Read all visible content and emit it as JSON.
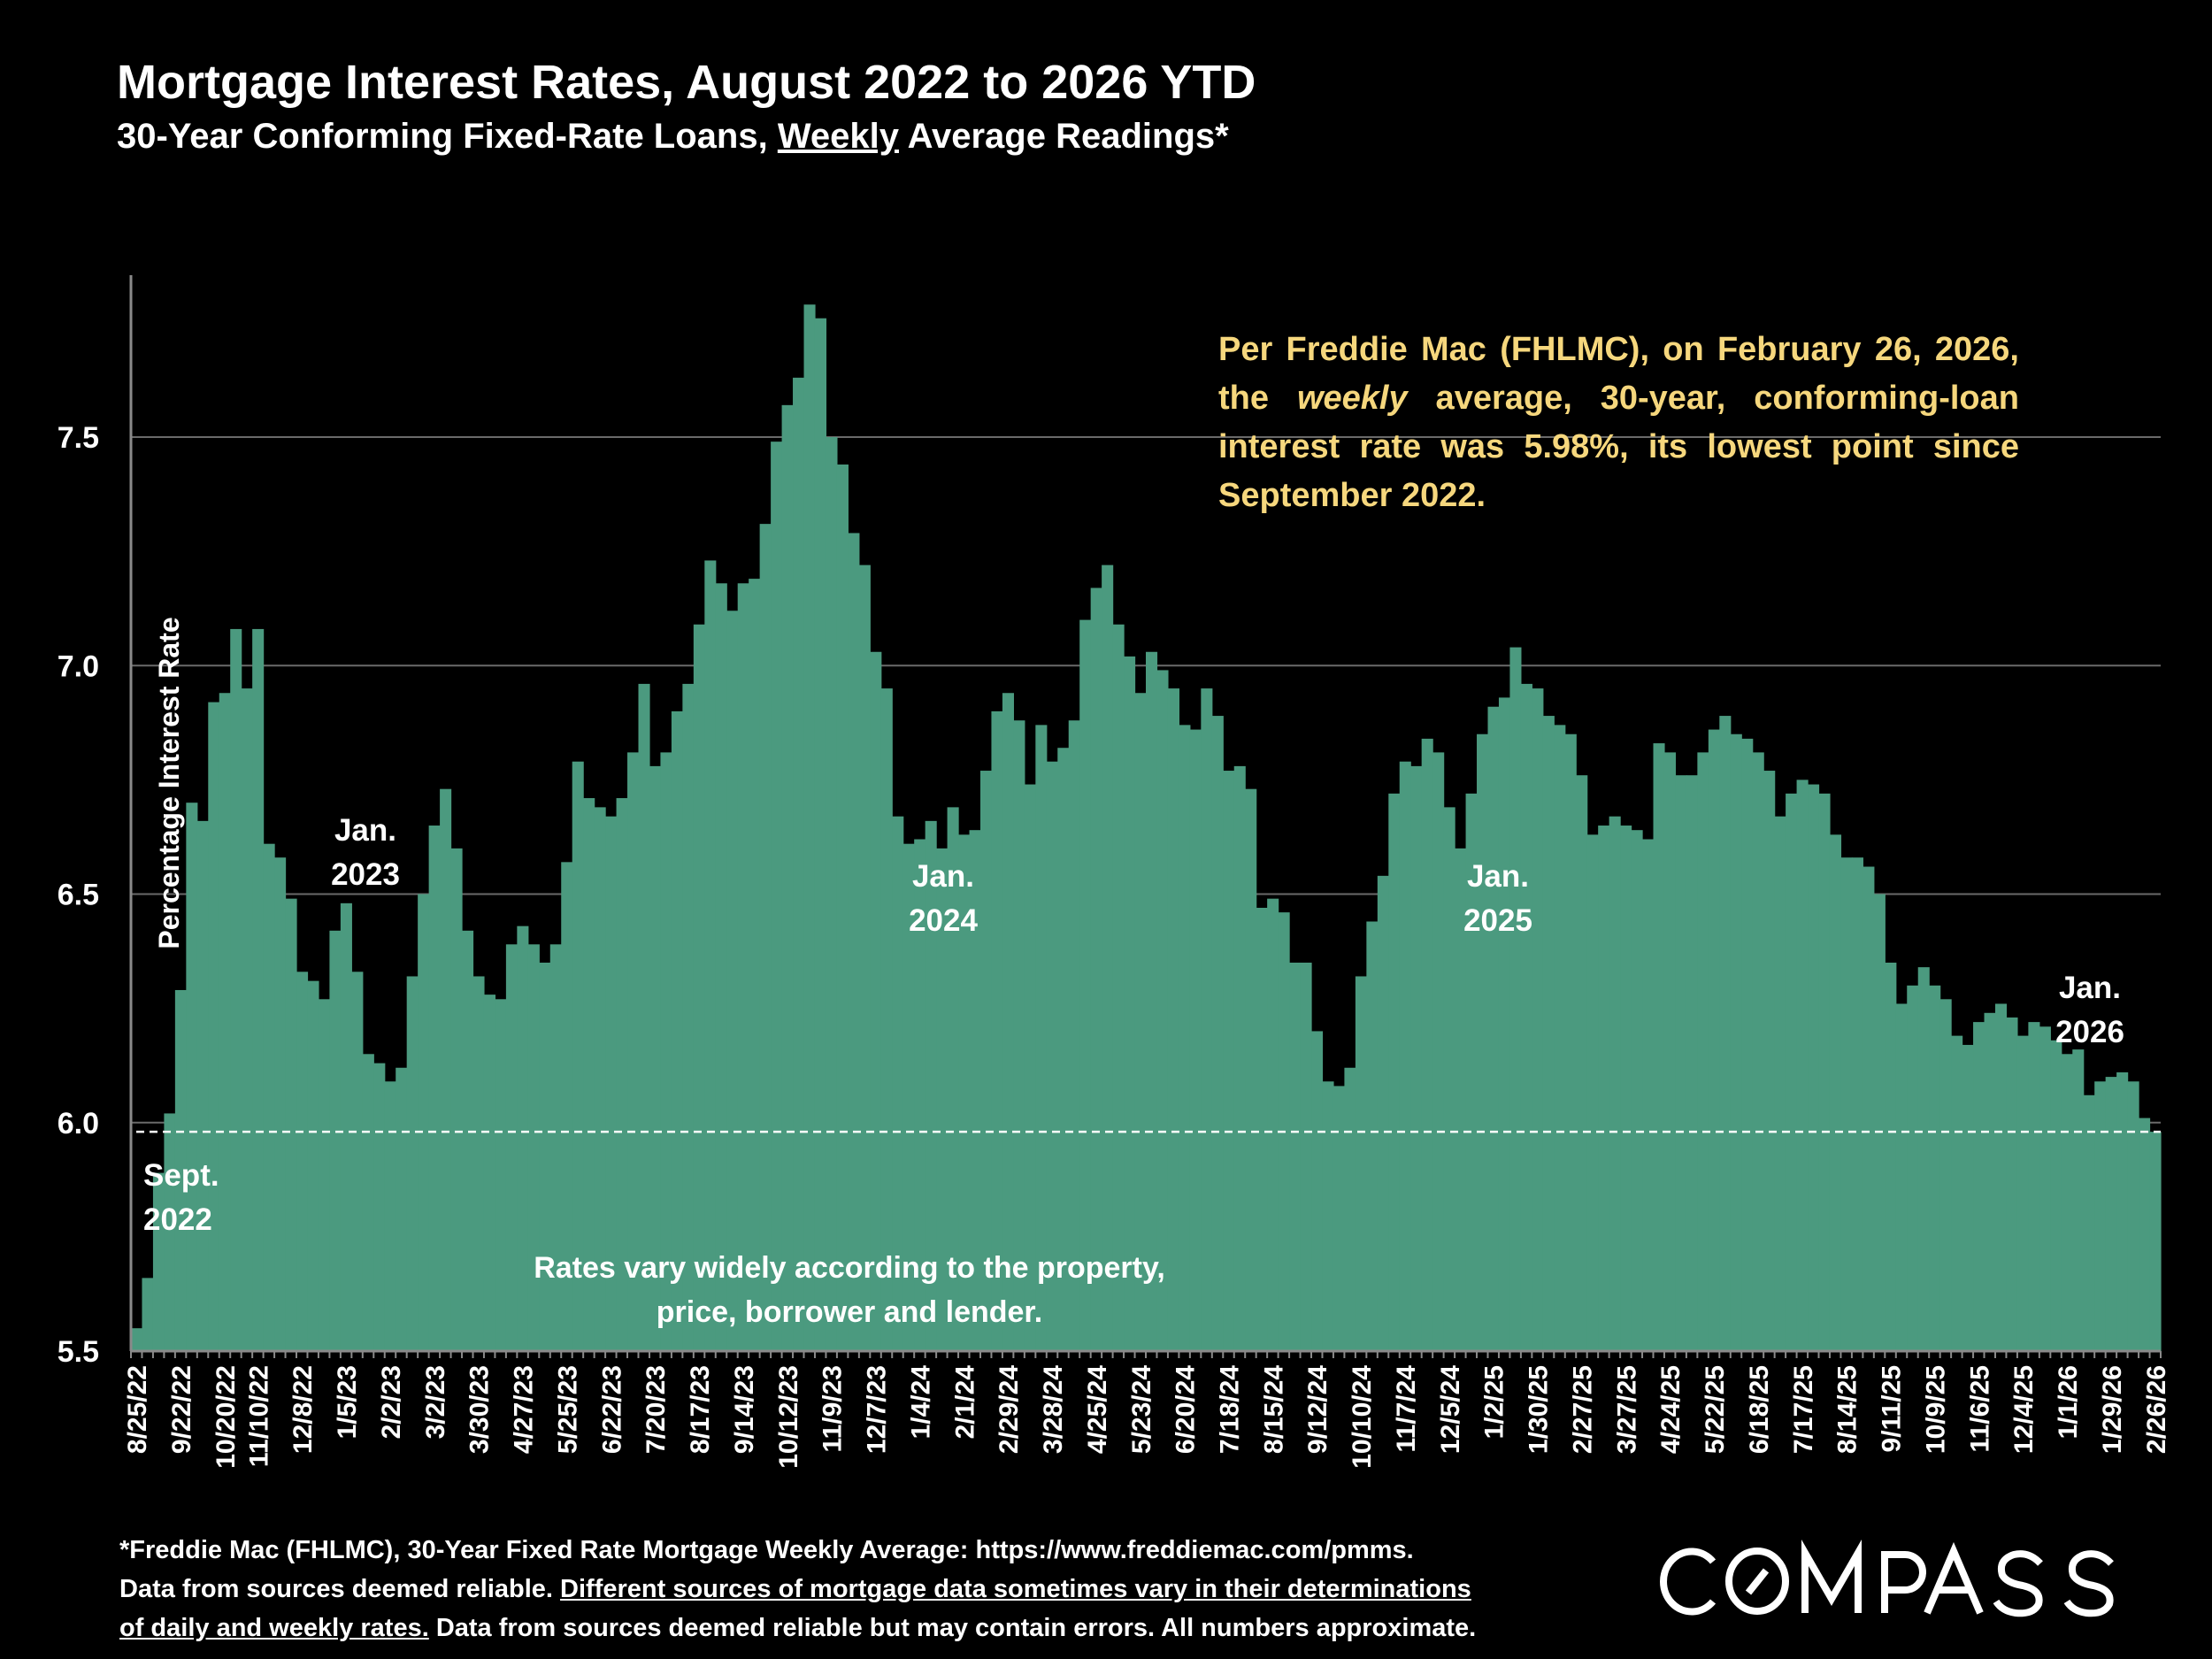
{
  "title": "Mortgage Interest Rates, August 2022 to 2026 YTD",
  "subtitle": {
    "before": "30-Year Conforming Fixed-Rate Loans, ",
    "underlined": "Weekly",
    "after": " Average Readings*"
  },
  "annotation": {
    "part1": "Per Freddie Mac (FHLMC), on February 26, 2026, the ",
    "italic": "weekly",
    "part2": " average, 30-year, conforming-loan interest rate was 5.98%, its lowest point since September 2022."
  },
  "footer": {
    "line1": "*Freddie Mac (FHLMC), 30-Year Fixed Rate Mortgage Weekly Average:  https://www.freddiemac.com/pmms.",
    "line2_plain": "Data from sources deemed reliable. ",
    "line2_underlined": "Different sources of mortgage data sometimes vary in their determinations",
    "line3_underlined": "of daily and weekly rates.",
    "line3_plain": " Data from sources deemed reliable but may contain errors. All numbers approximate."
  },
  "logo": "COMPASS",
  "colors": {
    "bar": "#4b9a7f",
    "annotation": "#f6d77d",
    "background": "#000000",
    "reference_line": "#ffffff"
  },
  "chart_data": {
    "type": "bar",
    "ylabel": "Percentage Interest  Rate",
    "ylim": [
      5.5,
      7.85
    ],
    "yticks": [
      "5.5",
      "6.0",
      "6.5",
      "7.0",
      "7.5"
    ],
    "grid": true,
    "reference_line": 5.98,
    "annotations": [
      {
        "text": [
          "Sept.",
          "2022"
        ],
        "at": "9/15/22"
      },
      {
        "text": [
          "Jan.",
          "2023"
        ],
        "at": "1/5/23"
      },
      {
        "text": [
          "Jan.",
          "2024"
        ],
        "at": "1/4/24"
      },
      {
        "text": [
          "Jan.",
          "2025"
        ],
        "at": "1/2/25"
      },
      {
        "text": [
          "Jan.",
          "2026"
        ],
        "at": "1/1/26"
      },
      {
        "text": [
          "Rates vary widely according to the property,",
          "price, borrower and lender."
        ],
        "at": "center"
      }
    ],
    "xtick_labels": [
      "8/25/22",
      "9/22/22",
      "10/20/22",
      "11/10/22",
      "12/8/22",
      "1/5/23",
      "2/2/23",
      "3/2/23",
      "3/30/23",
      "4/27/23",
      "5/25/23",
      "6/22/23",
      "7/20/23",
      "8/17/23",
      "9/14/23",
      "10/12/23",
      "11/9/23",
      "12/7/23",
      "1/4/24",
      "2/1/24",
      "2/29/24",
      "3/28/24",
      "4/25/24",
      "5/23/24",
      "6/20/24",
      "7/18/24",
      "8/15/24",
      "9/12/24",
      "10/10/24",
      "11/7/24",
      "12/5/24",
      "1/2/25",
      "1/30/25",
      "2/27/25",
      "3/27/25",
      "4/24/25",
      "5/22/25",
      "6/18/25",
      "7/17/25",
      "8/14/25",
      "9/11/25",
      "10/9/25",
      "11/6/25",
      "12/4/25",
      "1/1/26",
      "1/29/26",
      "2/26/26"
    ],
    "x": [
      "8/25/22",
      "9/1/22",
      "9/8/22",
      "9/15/22",
      "9/22/22",
      "9/29/22",
      "10/6/22",
      "10/13/22",
      "10/20/22",
      "10/27/22",
      "11/3/22",
      "11/10/22",
      "11/17/22",
      "11/23/22",
      "12/1/22",
      "12/8/22",
      "12/15/22",
      "12/22/22",
      "12/29/22",
      "1/5/23",
      "1/12/23",
      "1/19/23",
      "1/26/23",
      "2/2/23",
      "2/9/23",
      "2/16/23",
      "2/23/23",
      "3/2/23",
      "3/9/23",
      "3/16/23",
      "3/23/23",
      "3/30/23",
      "4/6/23",
      "4/13/23",
      "4/20/23",
      "4/27/23",
      "5/4/23",
      "5/11/23",
      "5/18/23",
      "5/25/23",
      "6/1/23",
      "6/8/23",
      "6/15/23",
      "6/22/23",
      "6/29/23",
      "7/6/23",
      "7/13/23",
      "7/20/23",
      "7/27/23",
      "8/3/23",
      "8/10/23",
      "8/17/23",
      "8/24/23",
      "8/31/23",
      "9/7/23",
      "9/14/23",
      "9/21/23",
      "9/28/23",
      "10/5/23",
      "10/12/23",
      "10/19/23",
      "10/26/23",
      "11/2/23",
      "11/9/23",
      "11/16/23",
      "11/22/23",
      "11/30/23",
      "12/7/23",
      "12/14/23",
      "12/21/23",
      "12/28/23",
      "1/4/24",
      "1/11/24",
      "1/18/24",
      "1/25/24",
      "2/1/24",
      "2/8/24",
      "2/15/24",
      "2/22/24",
      "2/29/24",
      "3/7/24",
      "3/14/24",
      "3/21/24",
      "3/28/24",
      "4/4/24",
      "4/11/24",
      "4/18/24",
      "4/25/24",
      "5/2/24",
      "5/9/24",
      "5/16/24",
      "5/23/24",
      "5/30/24",
      "6/6/24",
      "6/13/24",
      "6/20/24",
      "6/27/24",
      "7/3/24",
      "7/11/24",
      "7/18/24",
      "7/25/24",
      "8/1/24",
      "8/8/24",
      "8/15/24",
      "8/22/24",
      "8/29/24",
      "9/5/24",
      "9/12/24",
      "9/19/24",
      "9/26/24",
      "10/3/24",
      "10/10/24",
      "10/17/24",
      "10/24/24",
      "10/31/24",
      "11/7/24",
      "11/14/24",
      "11/21/24",
      "11/27/24",
      "12/5/24",
      "12/12/24",
      "12/19/24",
      "12/26/24",
      "1/2/25",
      "1/9/25",
      "1/16/25",
      "1/23/25",
      "1/30/25",
      "2/6/25",
      "2/13/25",
      "2/20/25",
      "2/27/25",
      "3/6/25",
      "3/13/25",
      "3/20/25",
      "3/27/25",
      "4/3/25",
      "4/10/25",
      "4/17/25",
      "4/24/25",
      "5/1/25",
      "5/8/25",
      "5/15/25",
      "5/22/25",
      "5/29/25",
      "6/5/25",
      "6/12/25",
      "6/18/25",
      "6/26/25",
      "7/3/25",
      "7/10/25",
      "7/17/25",
      "7/24/25",
      "7/31/25",
      "8/7/25",
      "8/14/25",
      "8/21/25",
      "8/28/25",
      "9/4/25",
      "9/11/25",
      "9/18/25",
      "9/25/25",
      "10/2/25",
      "10/9/25",
      "10/16/25",
      "10/23/25",
      "10/30/25",
      "11/6/25",
      "11/13/25",
      "11/20/25",
      "11/26/25",
      "12/4/25",
      "12/11/25",
      "12/18/25",
      "12/24/25",
      "1/1/26",
      "1/8/26",
      "1/15/26",
      "1/22/26",
      "1/29/26",
      "2/5/26",
      "2/12/26",
      "2/19/26",
      "2/26/26"
    ],
    "values": [
      5.55,
      5.66,
      5.89,
      6.02,
      6.29,
      6.7,
      6.66,
      6.92,
      6.94,
      7.08,
      6.95,
      7.08,
      6.61,
      6.58,
      6.49,
      6.33,
      6.31,
      6.27,
      6.42,
      6.48,
      6.33,
      6.15,
      6.13,
      6.09,
      6.12,
      6.32,
      6.5,
      6.65,
      6.73,
      6.6,
      6.42,
      6.32,
      6.28,
      6.27,
      6.39,
      6.43,
      6.39,
      6.35,
      6.39,
      6.57,
      6.79,
      6.71,
      6.69,
      6.67,
      6.71,
      6.81,
      6.96,
      6.78,
      6.81,
      6.9,
      6.96,
      7.09,
      7.23,
      7.18,
      7.12,
      7.18,
      7.19,
      7.31,
      7.49,
      7.57,
      7.63,
      7.79,
      7.76,
      7.5,
      7.44,
      7.29,
      7.22,
      7.03,
      6.95,
      6.67,
      6.61,
      6.62,
      6.66,
      6.6,
      6.69,
      6.63,
      6.64,
      6.77,
      6.9,
      6.94,
      6.88,
      6.74,
      6.87,
      6.79,
      6.82,
      6.88,
      7.1,
      7.17,
      7.22,
      7.09,
      7.02,
      6.94,
      7.03,
      6.99,
      6.95,
      6.87,
      6.86,
      6.95,
      6.89,
      6.77,
      6.78,
      6.73,
      6.47,
      6.49,
      6.46,
      6.35,
      6.35,
      6.2,
      6.09,
      6.08,
      6.12,
      6.32,
      6.44,
      6.54,
      6.72,
      6.79,
      6.78,
      6.84,
      6.81,
      6.69,
      6.6,
      6.72,
      6.85,
      6.91,
      6.93,
      7.04,
      6.96,
      6.95,
      6.89,
      6.87,
      6.85,
      6.76,
      6.63,
      6.65,
      6.67,
      6.65,
      6.64,
      6.62,
      6.83,
      6.81,
      6.76,
      6.76,
      6.81,
      6.86,
      6.89,
      6.85,
      6.84,
      6.81,
      6.77,
      6.67,
      6.72,
      6.75,
      6.74,
      6.72,
      6.63,
      6.58,
      6.58,
      6.56,
      6.5,
      6.35,
      6.26,
      6.3,
      6.34,
      6.3,
      6.27,
      6.19,
      6.17,
      6.22,
      6.24,
      6.26,
      6.23,
      6.19,
      6.22,
      6.21,
      6.18,
      6.15,
      6.16,
      6.06,
      6.09,
      6.1,
      6.11,
      6.09,
      6.01,
      5.98
    ]
  }
}
